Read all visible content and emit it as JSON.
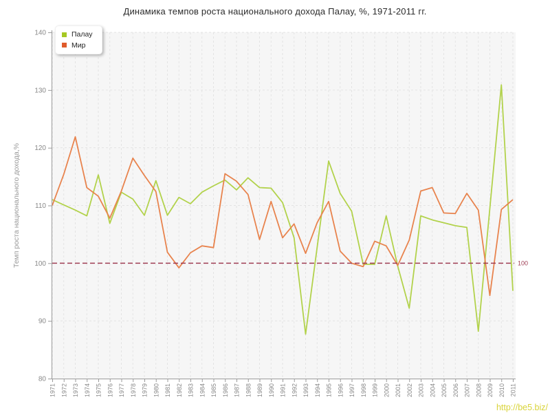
{
  "title": "Динамика темпов роста национального дохода Палау, %, 1971-2011 гг.",
  "watermark": {
    "text": "http://be5.biz/"
  },
  "legend": {
    "items": [
      {
        "label": "Палау",
        "swatch": "#a6c823"
      },
      {
        "label": "Мир",
        "swatch": "#df5b2b"
      }
    ]
  },
  "chart_data": {
    "type": "line",
    "title": "Динамика темпов роста национального дохода Палау, %, 1971-2011 гг.",
    "xlabel": "",
    "ylabel": "Темп роста национального дохода,%",
    "ylim": [
      80,
      140
    ],
    "yticks": [
      80,
      90,
      100,
      110,
      120,
      130,
      140
    ],
    "grid": true,
    "legend_position": "top-left",
    "reference_line": {
      "value": 100,
      "label": "100",
      "color": "#9e3b52"
    },
    "categories": [
      "1971",
      "1972",
      "1973",
      "1974",
      "1975",
      "1976",
      "1977",
      "1978",
      "1979",
      "1980",
      "1981",
      "1982",
      "1983",
      "1984",
      "1985",
      "1986",
      "1987",
      "1988",
      "1989",
      "1990",
      "1991",
      "1992",
      "1993",
      "1994",
      "1995",
      "1996",
      "1997",
      "1998",
      "1999",
      "2000",
      "2001",
      "2002",
      "2003",
      "2004",
      "2005",
      "2006",
      "2007",
      "2008",
      "2009",
      "2010",
      "2011"
    ],
    "series": [
      {
        "name": "Палау",
        "key": "palau",
        "color": "#b2d24b",
        "values": [
          111.0,
          110.1,
          109.2,
          108.2,
          115.3,
          106.9,
          112.3,
          111.1,
          108.3,
          114.3,
          108.3,
          111.4,
          110.3,
          112.3,
          113.4,
          114.4,
          112.7,
          114.8,
          113.1,
          113.0,
          110.5,
          104.4,
          87.7,
          102.7,
          117.7,
          112.1,
          109.0,
          99.8,
          99.8,
          108.2,
          99.5,
          92.2,
          108.2,
          107.5,
          107.0,
          106.5,
          106.2,
          88.2,
          109.5,
          130.9,
          95.2
        ]
      },
      {
        "name": "Мир",
        "key": "mir",
        "color": "#e8834d",
        "values": [
          110.0,
          115.4,
          121.9,
          113.1,
          111.6,
          107.8,
          112.5,
          118.2,
          115.2,
          112.4,
          101.9,
          99.2,
          101.8,
          103.0,
          102.7,
          115.5,
          114.2,
          111.9,
          104.1,
          110.7,
          104.4,
          106.8,
          101.7,
          107.0,
          110.7,
          102.1,
          100.0,
          99.4,
          103.8,
          103.0,
          99.6,
          104.0,
          112.5,
          113.1,
          108.7,
          108.6,
          112.1,
          109.2,
          94.4,
          109.3,
          111.0
        ]
      }
    ],
    "style": {
      "plot_bg": "#f6f6f6",
      "grid_color": "#e3e3e3",
      "spine_color": "#9a9a9a",
      "tick_label_color": "#888888",
      "axis_title_color": "#999999"
    }
  }
}
